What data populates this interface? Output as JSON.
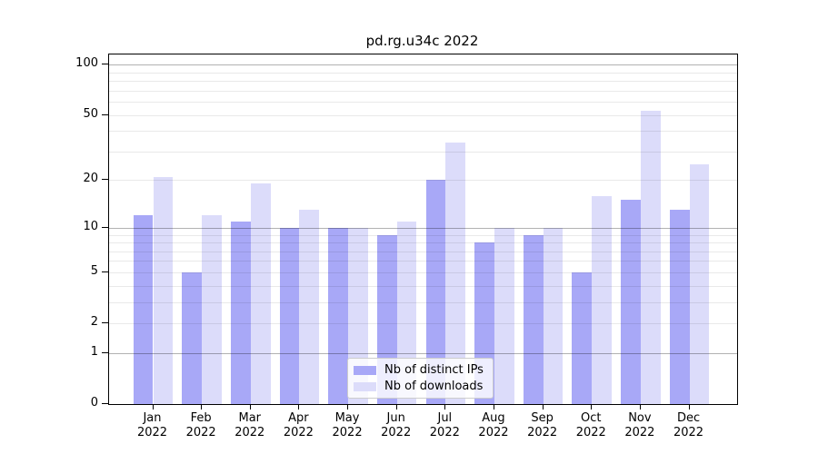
{
  "chart_data": {
    "type": "bar",
    "title": "pd.rg.u34c 2022",
    "categories": [
      "Jan",
      "Feb",
      "Mar",
      "Apr",
      "May",
      "Jun",
      "Jul",
      "Aug",
      "Sep",
      "Oct",
      "Nov",
      "Dec"
    ],
    "category_year": "2022",
    "series": [
      {
        "name": "Nb of distinct IPs",
        "color": "#a8a8f7",
        "values": [
          12,
          5,
          11,
          10,
          10,
          9,
          20,
          8,
          9,
          5,
          15,
          13
        ]
      },
      {
        "name": "Nb of downloads",
        "color": "#dcdcfa",
        "values": [
          21,
          12,
          19,
          13,
          10,
          11,
          34,
          10,
          10,
          16,
          53,
          25
        ]
      }
    ],
    "xlabel": "",
    "ylabel": "",
    "yscale": "log1p",
    "ylim": [
      0,
      115
    ],
    "yticks": [
      0,
      1,
      2,
      5,
      10,
      20,
      50,
      100
    ],
    "major_gridlines": [
      1,
      10,
      100
    ],
    "minor_gridlines": [
      2,
      3,
      4,
      5,
      6,
      7,
      8,
      9,
      20,
      30,
      40,
      50,
      60,
      70,
      80,
      90
    ],
    "grid": "horizontal, drawn above bars",
    "legend_position": "lower center"
  },
  "colors": {
    "background": "#ffffff",
    "spine": "#000000",
    "bar_dark": "#a8a8f7",
    "bar_light": "#dcdcfa",
    "gridline_major": "#b3b3b3",
    "gridline_minor": "#ebebeb",
    "legend_border": "#cccccc"
  }
}
